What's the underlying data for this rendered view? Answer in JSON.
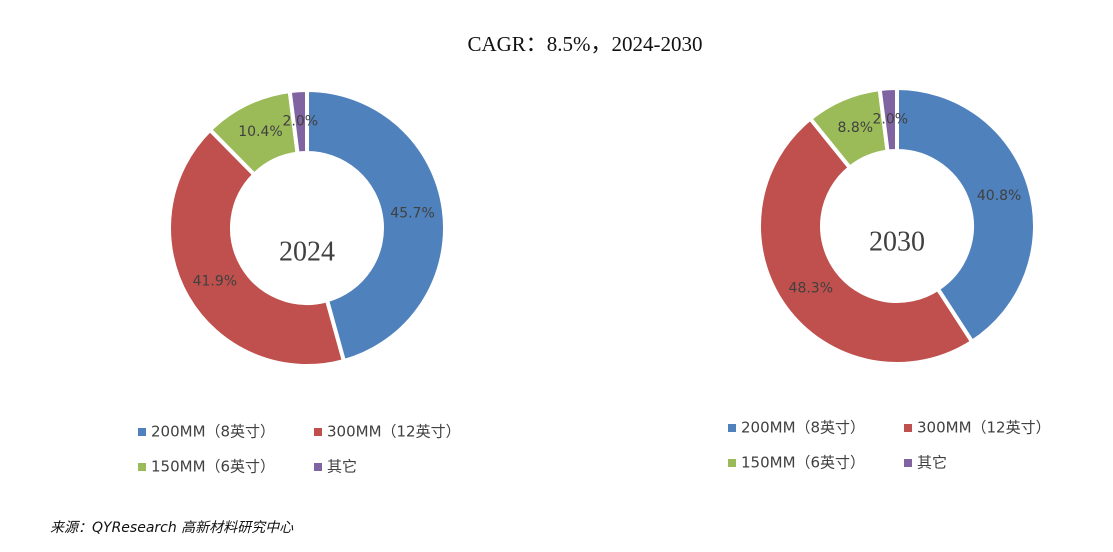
{
  "title": "CAGR：8.5%，2024-2030",
  "source": "来源：QYResearch 高新材料研究中心",
  "chart_data": [
    {
      "type": "pie",
      "center_label": "2024",
      "categories": [
        "200MM（8英寸）",
        "300MM（12英寸）",
        "150MM（6英寸）",
        "其它"
      ],
      "values": [
        45.7,
        41.9,
        10.4,
        2.0
      ],
      "value_labels": [
        "45.7%",
        "41.9%",
        "10.4%",
        "2.0%"
      ],
      "colors": [
        "#4f81bd",
        "#c0504d",
        "#9bbb59",
        "#8064a2"
      ]
    },
    {
      "type": "pie",
      "center_label": "2030",
      "categories": [
        "200MM（8英寸）",
        "300MM（12英寸）",
        "150MM（6英寸）",
        "其它"
      ],
      "values": [
        40.8,
        48.3,
        8.8,
        2.0
      ],
      "value_labels": [
        "40.8%",
        "48.3%",
        "8.8%",
        "2.0%"
      ],
      "colors": [
        "#4f81bd",
        "#c0504d",
        "#9bbb59",
        "#8064a2"
      ]
    }
  ]
}
